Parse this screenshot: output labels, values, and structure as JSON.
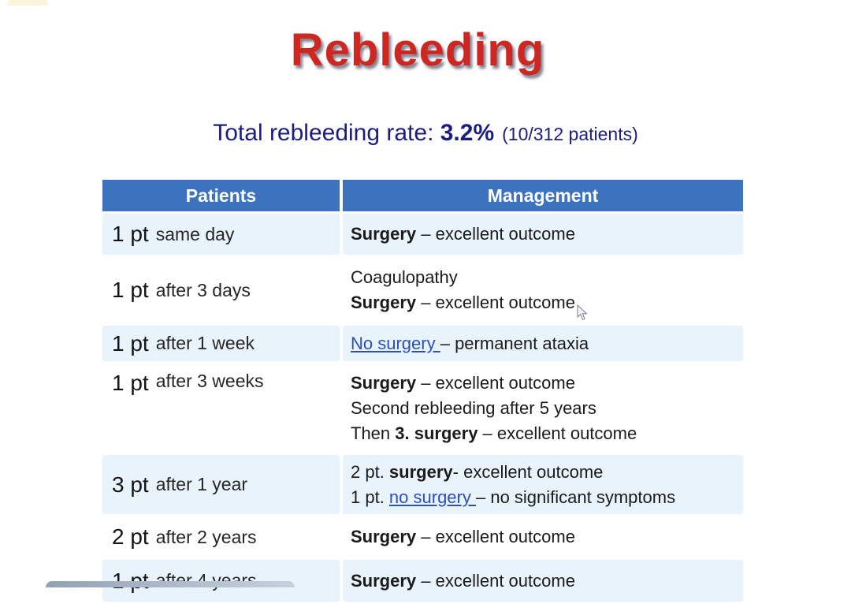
{
  "title": "Rebleeding",
  "subtitle": {
    "prefix": "Total rebleeding rate: ",
    "rate": "3.2%",
    "detail": "(10/312 patients)"
  },
  "colors": {
    "header_blue": "#3d72bf",
    "row_alt_blue": "#e9f3fb",
    "title_red": "#ce2620",
    "subtitle_navy": "#1d1d80",
    "link_blue": "#2b4fc0"
  },
  "icons": {
    "cursor": "mouse-pointer-icon"
  },
  "table": {
    "headers": [
      "Patients",
      "Management"
    ],
    "rows": [
      {
        "patient": {
          "count": "1 pt",
          "when": "same day"
        },
        "management": [
          [
            {
              "t": "Surgery",
              "s": "b"
            },
            {
              "t": " – excellent outcome",
              "s": "p"
            }
          ]
        ]
      },
      {
        "patient": {
          "count": "1 pt",
          "when": "after 3 days"
        },
        "management": [
          [
            {
              "t": "Coagulopathy",
              "s": "p"
            }
          ],
          [
            {
              "t": "Surgery",
              "s": "b"
            },
            {
              "t": " – excellent outcome",
              "s": "p"
            }
          ]
        ]
      },
      {
        "patient": {
          "count": "1 pt",
          "when": "after 1 week"
        },
        "management": [
          [
            {
              "t": "No surgery ",
              "s": "l"
            },
            {
              "t": "– permanent ataxia",
              "s": "p"
            }
          ]
        ]
      },
      {
        "patient": {
          "count": "1 pt",
          "when": "after 3 weeks"
        },
        "management": [
          [
            {
              "t": "Surgery",
              "s": "b"
            },
            {
              "t": " – excellent outcome",
              "s": "p"
            }
          ],
          [
            {
              "t": "Second rebleeding after 5 years",
              "s": "p"
            }
          ],
          [
            {
              "t": "Then ",
              "s": "p"
            },
            {
              "t": "3. surgery",
              "s": "b"
            },
            {
              "t": " – excellent outcome",
              "s": "p"
            }
          ]
        ]
      },
      {
        "patient": {
          "count": "3 pt",
          "when": "after 1 year"
        },
        "management": [
          [
            {
              "t": "2 pt. ",
              "s": "p"
            },
            {
              "t": "surgery",
              "s": "b"
            },
            {
              "t": "- excellent outcome",
              "s": "p"
            }
          ],
          [
            {
              "t": "1 pt. ",
              "s": "p"
            },
            {
              "t": "no surgery ",
              "s": "l"
            },
            {
              "t": "– no significant symptoms",
              "s": "p"
            }
          ]
        ]
      },
      {
        "patient": {
          "count": "2 pt",
          "when": "after 2 years"
        },
        "management": [
          [
            {
              "t": "Surgery",
              "s": "b"
            },
            {
              "t": " – excellent outcome",
              "s": "p"
            }
          ]
        ]
      },
      {
        "patient": {
          "count": "1 pt",
          "when": "after 4 years"
        },
        "management": [
          [
            {
              "t": "Surgery",
              "s": "b"
            },
            {
              "t": " – excellent outcome",
              "s": "p"
            }
          ]
        ]
      }
    ]
  }
}
